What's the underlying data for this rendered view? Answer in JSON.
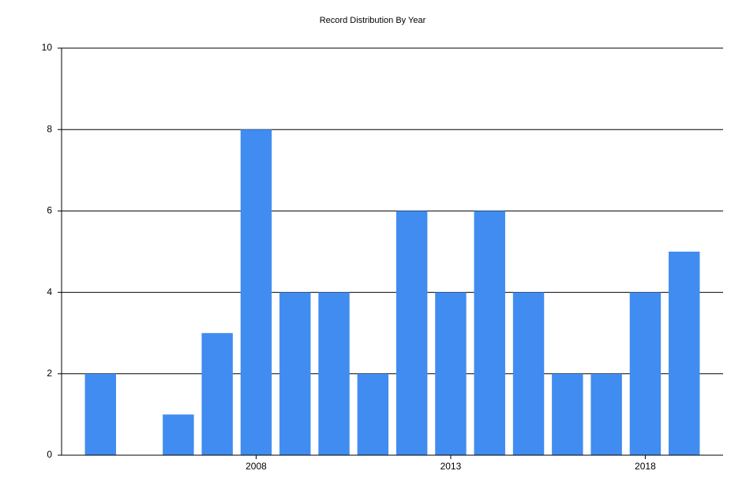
{
  "chart_data": {
    "type": "bar",
    "title": "Record Distribution By Year",
    "x": [
      2004,
      2005,
      2006,
      2007,
      2008,
      2009,
      2010,
      2011,
      2012,
      2013,
      2014,
      2015,
      2016,
      2017,
      2018,
      2019
    ],
    "values": [
      2,
      0,
      1,
      3,
      8,
      4,
      4,
      2,
      6,
      4,
      6,
      4,
      2,
      2,
      4,
      5
    ],
    "color": "#418cf0",
    "xlim": [
      2003,
      2020
    ],
    "xticks": [
      2008,
      2013,
      2018
    ],
    "ylim": [
      0,
      10
    ],
    "yticks": [
      0,
      2,
      4,
      6,
      8,
      10
    ],
    "grid": true
  }
}
